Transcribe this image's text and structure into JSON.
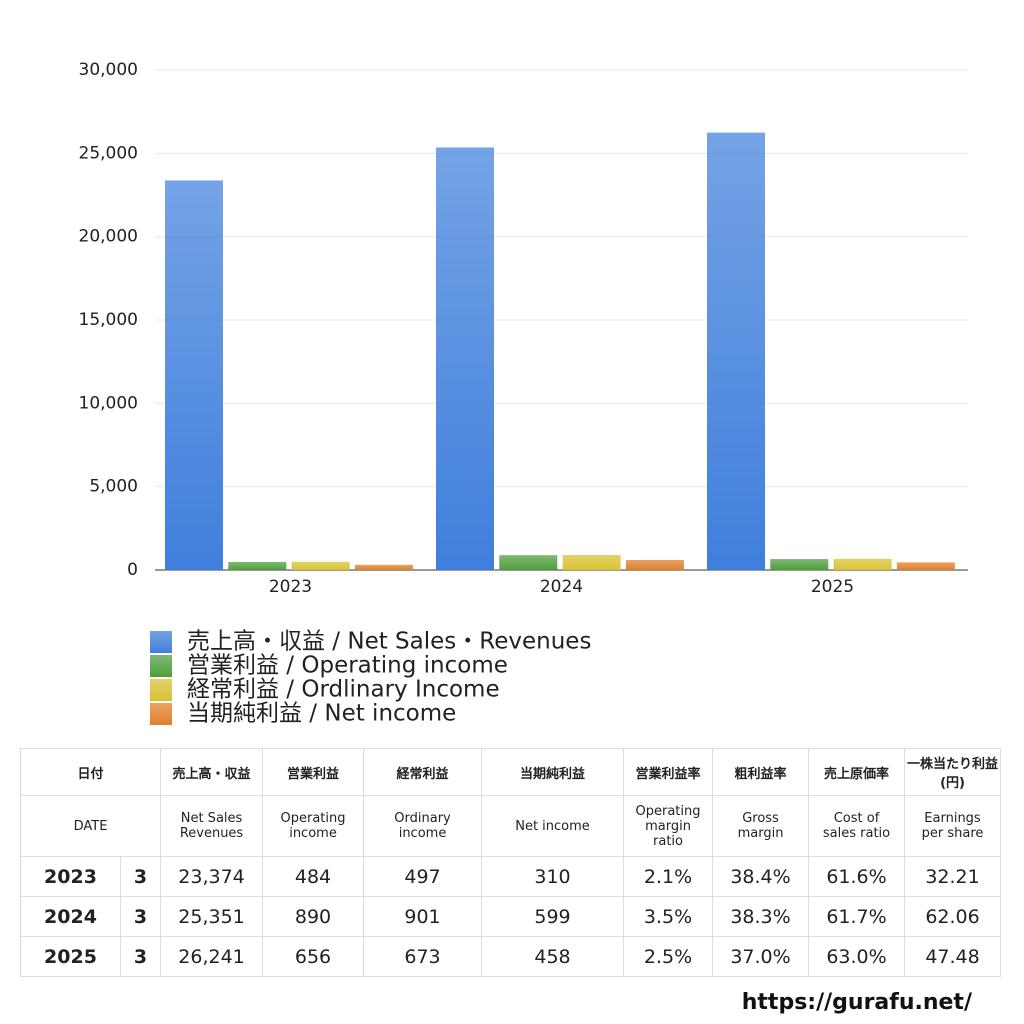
{
  "chart_data": {
    "type": "bar",
    "categories": [
      "2023",
      "2024",
      "2025"
    ],
    "series": [
      {
        "name": "売上高・収益 / Net Sales・Revenues",
        "color": "#3f7fdc",
        "values": [
          23374,
          25351,
          26241
        ]
      },
      {
        "name": "営業利益 / Operating income",
        "color": "#4e9e3c",
        "values": [
          484,
          890,
          656
        ]
      },
      {
        "name": "経常利益 / Ordlinary Income",
        "color": "#d8c232",
        "values": [
          497,
          901,
          673
        ]
      },
      {
        "name": "当期純利益 / Net income",
        "color": "#e07f2a",
        "values": [
          310,
          599,
          458
        ]
      }
    ],
    "ylim": [
      0,
      30000
    ],
    "yticks": [
      0,
      {
        "value": 5000,
        "label": "5,000"
      },
      {
        "value": 10000,
        "label": "10,000"
      },
      {
        "value": 15000,
        "label": "15,000"
      },
      {
        "value": 20000,
        "label": "20,000"
      },
      {
        "value": 25000,
        "label": "25,000"
      },
      {
        "value": 30000,
        "label": "30,000"
      }
    ],
    "grid": true
  },
  "table": {
    "header_ja": [
      "日付",
      "売上高・収益",
      "営業利益",
      "経常利益",
      "当期純利益",
      "営業利益率",
      "粗利益率",
      "売上原価率",
      "一株当たり利益\n(円)"
    ],
    "header_en": [
      "DATE",
      "Net Sales\nRevenues",
      "Operating\nincome",
      "Ordinary\nincome",
      "Net income",
      "Operating\nmargin\nratio",
      "Gross\nmargin",
      "Cost of\nsales ratio",
      "Earnings\nper share"
    ],
    "rows": [
      [
        "2023",
        "3",
        "23,374",
        "484",
        "497",
        "310",
        "2.1%",
        "38.4%",
        "61.6%",
        "32.21"
      ],
      [
        "2024",
        "3",
        "25,351",
        "890",
        "901",
        "599",
        "3.5%",
        "38.3%",
        "61.7%",
        "62.06"
      ],
      [
        "2025",
        "3",
        "26,241",
        "656",
        "673",
        "458",
        "2.5%",
        "37.0%",
        "63.0%",
        "47.48"
      ]
    ]
  },
  "footer": "https://gurafu.net/"
}
